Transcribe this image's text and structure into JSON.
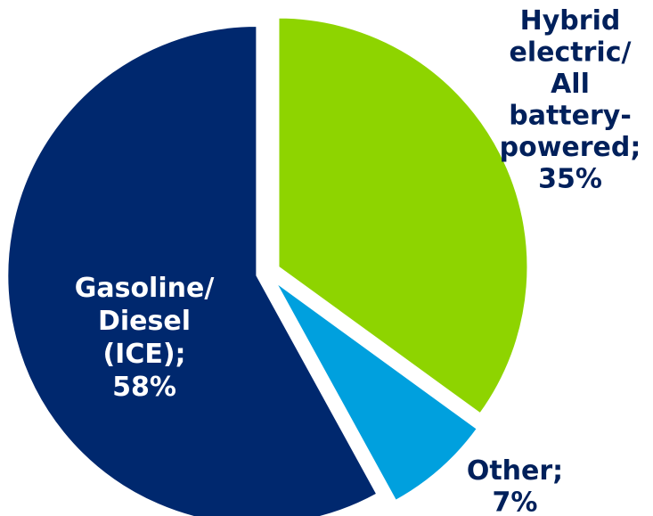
{
  "chart_data": {
    "type": "pie",
    "slices": [
      {
        "name": "Hybrid electric/ All battery-powered",
        "value": 35,
        "color": "#8ed400",
        "label_lines": [
          "Hybrid",
          "electric/",
          "All",
          "battery-",
          "powered;",
          "35%"
        ],
        "label_color": "#00205b"
      },
      {
        "name": "Other",
        "value": 7,
        "color": "#00a0de",
        "label_lines": [
          "Other;",
          "7%"
        ],
        "label_color": "#00205b"
      },
      {
        "name": "Gasoline/ Diesel (ICE)",
        "value": 58,
        "color": "#00286e",
        "label_lines": [
          "Gasoline/",
          "Diesel",
          "(ICE);",
          "58%"
        ],
        "label_color": "#ffffff"
      }
    ]
  }
}
